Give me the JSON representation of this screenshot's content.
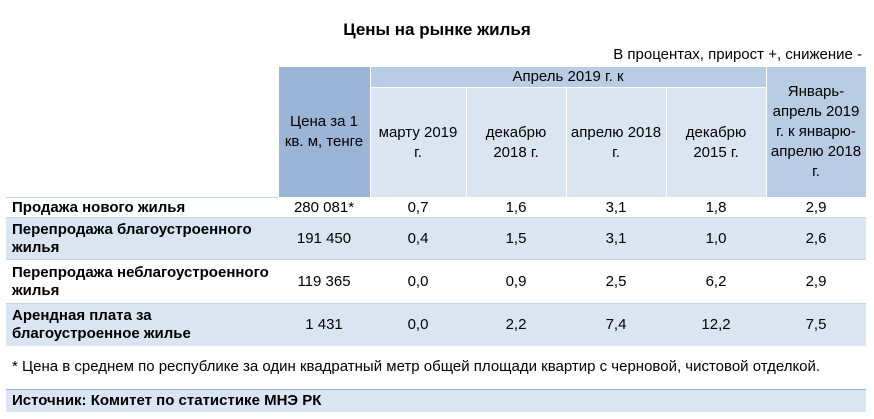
{
  "title": "Цены на рынке жилья",
  "units_note": "В процентах, прирост +, снижение -",
  "table": {
    "price_header": "Цена за 1 кв. м, тенге",
    "group_header": "Апрель 2019 г. к",
    "subheaders": [
      "марту 2019 г.",
      "декабрю 2018 г.",
      "апрелю 2018 г.",
      "декабрю 2015 г."
    ],
    "last_header": "Январь-апрель 2019 г. к январю-апрелю 2018 г.",
    "rows": [
      {
        "label": "Продажа нового жилья",
        "price": "280 081*",
        "v1": "0,7",
        "v2": "1,6",
        "v3": "3,1",
        "v4": "1,8",
        "v5": "2,9"
      },
      {
        "label": "Перепродажа благоустроенного жилья",
        "price": "191 450",
        "v1": "0,4",
        "v2": "1,5",
        "v3": "3,1",
        "v4": "1,0",
        "v5": "2,6"
      },
      {
        "label": "Перепродажа неблагоустроенного жилья",
        "price": "119 365",
        "v1": "0,0",
        "v2": "0,9",
        "v3": "2,5",
        "v4": "6,2",
        "v5": "2,9"
      },
      {
        "label": "Арендная плата за благоустроенное жилье",
        "price": "1 431",
        "v1": "0,0",
        "v2": "2,2",
        "v3": "7,4",
        "v4": "12,2",
        "v5": "7,5"
      }
    ]
  },
  "footnote": "* Цена в среднем по республике за один квадратный метр общей площади квартир с черновой, чистовой отделкой.",
  "source": "Источник: Комитет по статистике МНЭ РК",
  "colors": {
    "header_dark": "#9cb4d6",
    "header_mid": "#b8cce4",
    "header_light": "#dbe5f1"
  }
}
